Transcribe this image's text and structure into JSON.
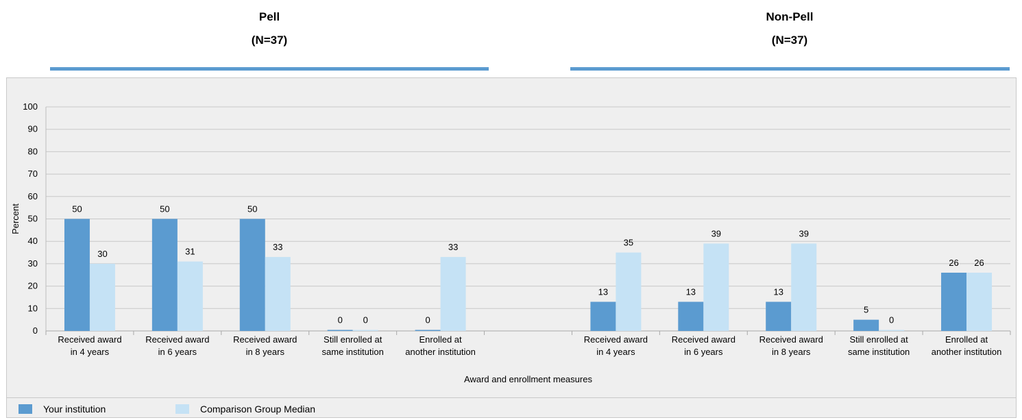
{
  "groups": [
    {
      "title": "Pell",
      "n_label": "(N=37)"
    },
    {
      "title": "Non-Pell",
      "n_label": "(N=37)"
    }
  ],
  "legend": [
    {
      "label": "Your institution",
      "color": "#5b9bd0"
    },
    {
      "label": "Comparison Group Median",
      "color": "#c5e2f5"
    }
  ],
  "chart_data": {
    "type": "bar",
    "title": "",
    "xlabel": "Award and enrollment measures",
    "ylabel": "Percent",
    "ylim": [
      0,
      100
    ],
    "yticks": [
      0,
      10,
      20,
      30,
      40,
      50,
      60,
      70,
      80,
      90,
      100
    ],
    "grid": true,
    "legend_position": "bottom",
    "categories": [
      [
        "Received award",
        "in 4 years"
      ],
      [
        "Received award",
        "in 6 years"
      ],
      [
        "Received award",
        "in 8 years"
      ],
      [
        "Still enrolled at",
        "same institution"
      ],
      [
        "Enrolled at",
        "another institution"
      ],
      [
        "",
        ""
      ],
      [
        "Received award",
        "in 4 years"
      ],
      [
        "Received award",
        "in 6 years"
      ],
      [
        "Received award",
        "in 8 years"
      ],
      [
        "Still enrolled at",
        "same institution"
      ],
      [
        "Enrolled at",
        "another institution"
      ]
    ],
    "series": [
      {
        "name": "Your institution",
        "color": "#5b9bd0",
        "values": [
          50,
          50,
          50,
          0,
          0,
          null,
          13,
          13,
          13,
          5,
          26
        ]
      },
      {
        "name": "Comparison Group Median",
        "color": "#c5e2f5",
        "values": [
          30,
          31,
          33,
          0,
          33,
          null,
          35,
          39,
          39,
          0,
          26
        ]
      }
    ]
  }
}
